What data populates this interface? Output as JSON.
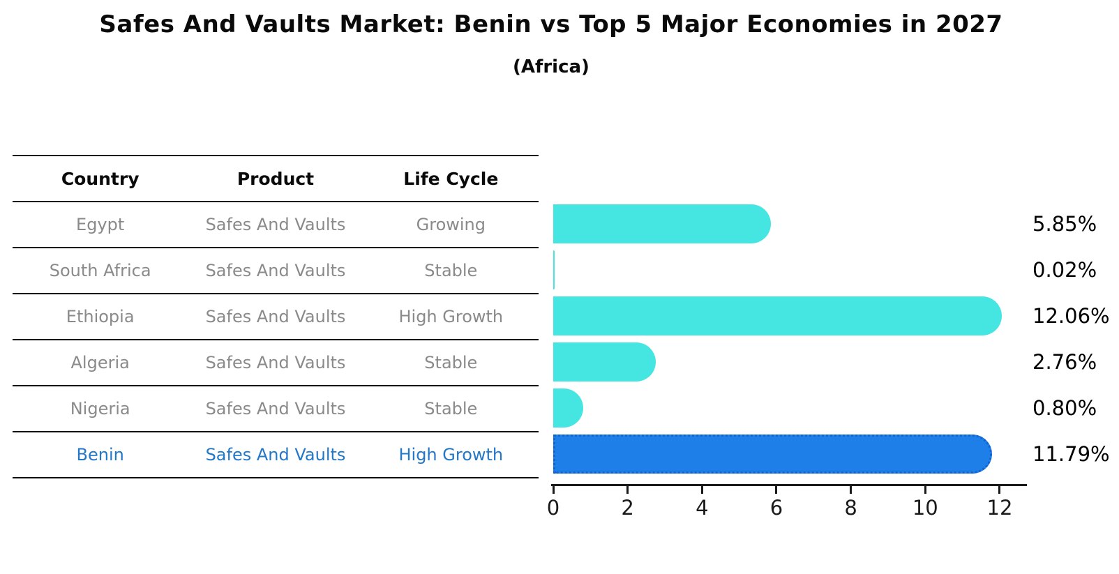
{
  "header": {
    "title": "Safes And Vaults Market: Benin vs Top 5 Major Economies in 2027",
    "subtitle": "(Africa)"
  },
  "table": {
    "headers": [
      "Country",
      "Product",
      "Life Cycle"
    ],
    "rows": [
      {
        "country": "Egypt",
        "product": "Safes And Vaults",
        "life_cycle": "Growing",
        "highlight": false
      },
      {
        "country": "South Africa",
        "product": "Safes And Vaults",
        "life_cycle": "Stable",
        "highlight": false
      },
      {
        "country": "Ethiopia",
        "product": "Safes And Vaults",
        "life_cycle": "High Growth",
        "highlight": false
      },
      {
        "country": "Algeria",
        "product": "Safes And Vaults",
        "life_cycle": "Stable",
        "highlight": false
      },
      {
        "country": "Nigeria",
        "product": "Safes And Vaults",
        "life_cycle": "Stable",
        "highlight": false
      },
      {
        "country": "Benin",
        "product": "Safes And Vaults",
        "life_cycle": "High Growth",
        "highlight": true
      }
    ]
  },
  "chart_data": {
    "type": "bar",
    "orientation": "horizontal",
    "title": "Safes And Vaults Market: Benin vs Top 5 Major Economies in 2027",
    "subtitle": "(Africa)",
    "categories": [
      "Egypt",
      "South Africa",
      "Ethiopia",
      "Algeria",
      "Nigeria",
      "Benin"
    ],
    "values": [
      5.85,
      0.02,
      12.06,
      2.76,
      0.8,
      11.79
    ],
    "value_labels": [
      "5.85%",
      "0.02%",
      "12.06%",
      "2.76%",
      "0.80%",
      "11.79%"
    ],
    "xticks": [
      0,
      2,
      4,
      6,
      8,
      10,
      12
    ],
    "xlim": [
      0,
      12.75
    ],
    "xlabel": "",
    "ylabel": "",
    "grid": false,
    "legend": "none",
    "bar_color": "#45E6E1",
    "highlight_category": "Benin",
    "highlight_color": "#1E7FE8",
    "highlight_border_color": "#1262D1",
    "highlight_text_color": "#2377C8"
  }
}
